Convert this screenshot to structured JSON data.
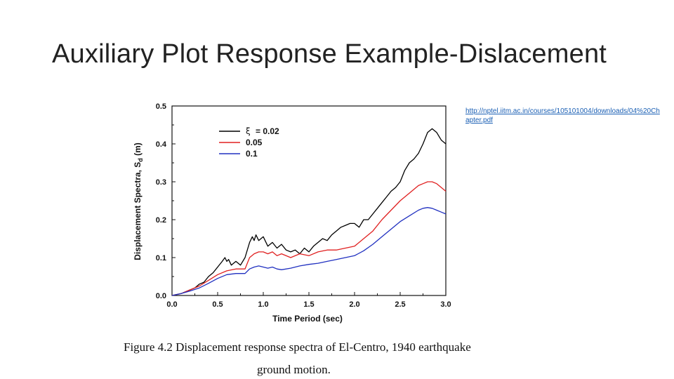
{
  "slide": {
    "title": "Auxiliary Plot Response Example-Dislacement",
    "source_link": "http://nptel.iitm.ac.in/courses/105101004/downloads/04%20Chapter.pdf",
    "caption_line1": "Figure 4.2 Displacement response spectra of El-Centro, 1940 earthquake",
    "caption_line2": "ground motion."
  },
  "chart_data": {
    "type": "line",
    "xlabel": "Time Period (sec)",
    "ylabel": "Displacement Spectra, S",
    "ylabel_sub": "d",
    "ylabel_unit": " (m)",
    "xlim": [
      0.0,
      3.0
    ],
    "ylim": [
      0.0,
      0.5
    ],
    "xticks": [
      "0.0",
      "0.5",
      "1.0",
      "1.5",
      "2.0",
      "2.5",
      "3.0"
    ],
    "yticks": [
      "0.0",
      "0.1",
      "0.2",
      "0.3",
      "0.4",
      "0.5"
    ],
    "grid": false,
    "legend_position": "top-left",
    "legend_symbol": "ξ",
    "series": [
      {
        "name": "= 0.02",
        "color": "#000000",
        "x": [
          0.0,
          0.1,
          0.2,
          0.25,
          0.3,
          0.35,
          0.4,
          0.45,
          0.5,
          0.55,
          0.58,
          0.6,
          0.62,
          0.65,
          0.7,
          0.75,
          0.8,
          0.85,
          0.88,
          0.9,
          0.92,
          0.95,
          1.0,
          1.05,
          1.1,
          1.15,
          1.2,
          1.25,
          1.3,
          1.35,
          1.4,
          1.45,
          1.5,
          1.55,
          1.6,
          1.65,
          1.7,
          1.75,
          1.8,
          1.85,
          1.9,
          1.95,
          2.0,
          2.05,
          2.1,
          2.15,
          2.2,
          2.25,
          2.3,
          2.35,
          2.4,
          2.45,
          2.5,
          2.55,
          2.6,
          2.65,
          2.7,
          2.75,
          2.8,
          2.85,
          2.9,
          2.95,
          3.0
        ],
        "y": [
          0.0,
          0.005,
          0.015,
          0.02,
          0.03,
          0.035,
          0.05,
          0.06,
          0.075,
          0.09,
          0.1,
          0.09,
          0.095,
          0.08,
          0.09,
          0.08,
          0.1,
          0.14,
          0.155,
          0.145,
          0.16,
          0.145,
          0.155,
          0.13,
          0.14,
          0.125,
          0.135,
          0.12,
          0.115,
          0.12,
          0.11,
          0.125,
          0.115,
          0.13,
          0.14,
          0.15,
          0.145,
          0.16,
          0.17,
          0.18,
          0.185,
          0.19,
          0.19,
          0.18,
          0.2,
          0.2,
          0.215,
          0.23,
          0.245,
          0.26,
          0.275,
          0.285,
          0.3,
          0.33,
          0.35,
          0.36,
          0.375,
          0.4,
          0.43,
          0.44,
          0.43,
          0.41,
          0.4
        ]
      },
      {
        "name": "0.05",
        "color": "#e02020",
        "x": [
          0.0,
          0.1,
          0.2,
          0.3,
          0.4,
          0.5,
          0.6,
          0.7,
          0.8,
          0.85,
          0.9,
          0.95,
          1.0,
          1.05,
          1.1,
          1.15,
          1.2,
          1.3,
          1.4,
          1.5,
          1.6,
          1.7,
          1.8,
          1.9,
          2.0,
          2.1,
          2.2,
          2.3,
          2.4,
          2.5,
          2.6,
          2.7,
          2.75,
          2.8,
          2.85,
          2.9,
          2.95,
          3.0
        ],
        "y": [
          0.0,
          0.005,
          0.015,
          0.025,
          0.04,
          0.055,
          0.065,
          0.07,
          0.07,
          0.1,
          0.11,
          0.115,
          0.115,
          0.11,
          0.115,
          0.105,
          0.11,
          0.1,
          0.11,
          0.105,
          0.115,
          0.12,
          0.12,
          0.125,
          0.13,
          0.15,
          0.17,
          0.2,
          0.225,
          0.25,
          0.27,
          0.29,
          0.295,
          0.3,
          0.3,
          0.295,
          0.285,
          0.275
        ]
      },
      {
        "name": "0.1",
        "color": "#2030c0",
        "x": [
          0.0,
          0.1,
          0.2,
          0.3,
          0.4,
          0.5,
          0.6,
          0.7,
          0.8,
          0.85,
          0.9,
          0.95,
          1.0,
          1.05,
          1.1,
          1.15,
          1.2,
          1.3,
          1.4,
          1.5,
          1.6,
          1.7,
          1.8,
          1.9,
          2.0,
          2.1,
          2.2,
          2.3,
          2.4,
          2.5,
          2.6,
          2.7,
          2.75,
          2.8,
          2.85,
          2.9,
          2.95,
          3.0
        ],
        "y": [
          0.0,
          0.005,
          0.012,
          0.02,
          0.032,
          0.045,
          0.055,
          0.058,
          0.058,
          0.07,
          0.075,
          0.078,
          0.075,
          0.072,
          0.075,
          0.07,
          0.068,
          0.072,
          0.078,
          0.082,
          0.085,
          0.09,
          0.095,
          0.1,
          0.105,
          0.118,
          0.135,
          0.155,
          0.175,
          0.195,
          0.21,
          0.225,
          0.23,
          0.232,
          0.23,
          0.225,
          0.22,
          0.215
        ]
      }
    ]
  }
}
